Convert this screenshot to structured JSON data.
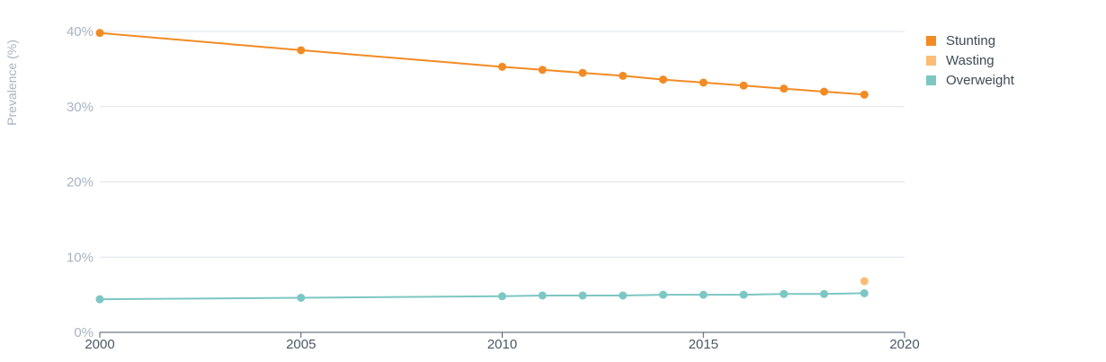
{
  "chart_data": {
    "type": "line",
    "ylabel": "Prevalence (%)",
    "xlabel": "",
    "xlim": [
      2000,
      2020
    ],
    "ylim": [
      0,
      40
    ],
    "x_ticks": [
      "2000",
      "2005",
      "2010",
      "2015",
      "2020"
    ],
    "y_ticks": [
      "0%",
      "10%",
      "20%",
      "30%",
      "40%"
    ],
    "grid": true,
    "legend_position": "top-right",
    "series": [
      {
        "name": "Stunting",
        "color": "#f28b24",
        "x": [
          2000,
          2005,
          2010,
          2011,
          2012,
          2013,
          2014,
          2015,
          2016,
          2017,
          2018,
          2019
        ],
        "values": [
          39.8,
          37.5,
          35.3,
          34.9,
          34.5,
          34.1,
          33.6,
          33.2,
          32.8,
          32.4,
          32.0,
          31.6
        ]
      },
      {
        "name": "Wasting",
        "color": "#fbbd74",
        "x": [
          2019
        ],
        "values": [
          6.8
        ]
      },
      {
        "name": "Overweight",
        "color": "#7cc7c3",
        "x": [
          2000,
          2005,
          2010,
          2011,
          2012,
          2013,
          2014,
          2015,
          2016,
          2017,
          2018,
          2019
        ],
        "values": [
          4.4,
          4.6,
          4.8,
          4.9,
          4.9,
          4.9,
          5.0,
          5.0,
          5.0,
          5.1,
          5.1,
          5.2
        ]
      }
    ]
  }
}
